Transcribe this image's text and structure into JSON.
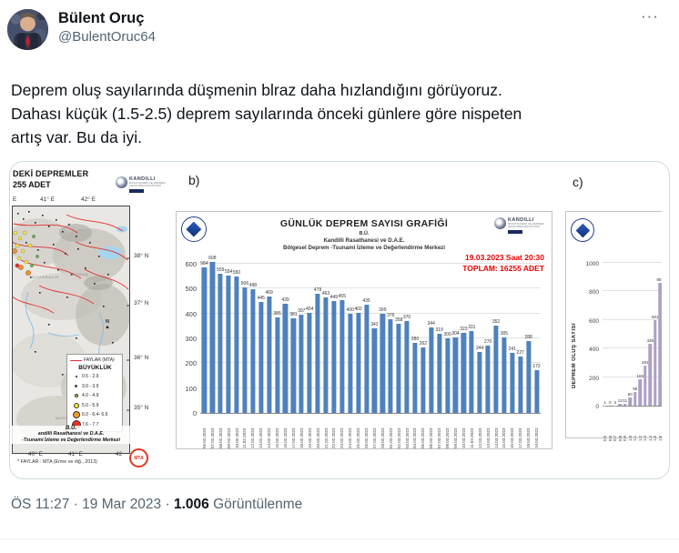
{
  "header": {
    "display_name": "Bülent Oruç",
    "handle": "@BulentOruc64",
    "more_label": "···"
  },
  "tweet": {
    "lines": [
      "Deprem oluş sayılarında düşmenin blraz daha hızlandığını görüyoruz.",
      "Dahası küçük (1.5-2.5) deprem sayılarında önceki günlere göre nispeten",
      "artış var. Bu da iyi."
    ]
  },
  "footer": {
    "time": "ÖS 11:27",
    "date": "19 Mar 2023",
    "separator": "·",
    "views": "1.006",
    "views_label": "Görüntülenme"
  },
  "panel_b": {
    "label": "b)"
  },
  "panel_c": {
    "label": "c)"
  },
  "logos": {
    "kandilli_name": "KANDILLI",
    "kandilli_sub": "RASATHANESİ VE DEPREM ARAŞTIRMA ENSTİTÜSÜ",
    "mta": "MTA"
  },
  "map_panel": {
    "title_line1": "DEKİ DEPREMLER",
    "title_line2": "255 ADET",
    "top_lon_labels": [
      "E",
      "41° E",
      "42° E"
    ],
    "lat_labels": [
      "38° N",
      "37° N",
      "36° N",
      "35° N"
    ],
    "bottom_lon_labels": [
      "40° E",
      "41° E",
      "42"
    ],
    "city_labels": [
      "DİYARBAKIR",
      "BATMAN",
      "MARDİN"
    ],
    "compass": "N",
    "legend": {
      "fault_label": "FAYLAR (MTA)",
      "size_title": "BÜYÜKLÜK",
      "entries": [
        {
          "label": "0.5 - 2.9",
          "color": "#222222",
          "size": 2
        },
        {
          "label": "3.0 - 3.9",
          "color": "#444444",
          "size": 3
        },
        {
          "label": "4.0 - 4.9",
          "color": "#cfd24a",
          "size": 4
        },
        {
          "label": "5.0 - 5.9",
          "color": "#ffe83a",
          "size": 6
        },
        {
          "label": "6.0 - 6.4- 6.6",
          "color": "#f59c2f",
          "size": 8
        },
        {
          "label": "7.6 - 7.7",
          "color": "#ee2e24",
          "size": 10
        }
      ]
    },
    "credit_bu": "B.Ü.",
    "credit_line1": "andilli Rasathanesi ve D.A.E.",
    "credit_line2": "-Tsunami İzleme ve Değerlendirme Merkezi",
    "fault_note": "* FAYLAR : MTA (Emre ve diğ., 2013)"
  },
  "chart_data": [
    {
      "id": "daily-earthquake-count",
      "type": "bar",
      "title": "GÜNLÜK  DEPREM SAYISI GRAFİĞİ",
      "subtitle1": "B.Ü.",
      "subtitle2": "Kandilli Rasathanesi ve D.A.E.",
      "subtitle3": "Bölgesel Deprem -Tsunami İzleme ve Değerlendirme Merkezi",
      "annotation_line1": "19.03.2023 Saat 20:30",
      "annotation_line2": "TOPLAM:  16255 ADET",
      "categories": [
        "06.02.2023",
        "07.02.2023",
        "08.02.2023",
        "09.02.2023",
        "10.02.2023",
        "11.02.2023",
        "12.02.2023",
        "13.02.2023",
        "14.02.2023",
        "15.02.2023",
        "16.02.2023",
        "17.02.2023",
        "18.02.2023",
        "19.02.2023",
        "20.02.2023",
        "21.02.2023",
        "22.02.2023",
        "23.02.2023",
        "24.02.2023",
        "25.02.2023",
        "26.02.2023",
        "27.02.2023",
        "28.02.2023",
        "01.03.2023",
        "02.03.2023",
        "03.03.2023",
        "04.03.2023",
        "05.03.2023",
        "06.03.2023",
        "07.03.2023",
        "08.03.2023",
        "09.03.2023",
        "10.03.2023",
        "11.03.2023",
        "12.03.2023",
        "13.03.2023",
        "14.03.2023",
        "15.03.2023",
        "16.03.2023",
        "17.03.2023",
        "18.03.2023",
        "19.03.2023"
      ],
      "values": [
        584,
        608,
        559,
        554,
        550,
        506,
        498,
        445,
        469,
        385,
        439,
        381,
        397,
        404,
        479,
        463,
        449,
        455,
        400,
        402,
        435,
        342,
        399,
        376,
        358,
        370,
        280,
        262,
        344,
        319,
        300,
        304,
        323,
        331,
        244,
        270,
        352,
        305,
        241,
        227,
        288,
        172
      ],
      "xlabel": "",
      "ylabel": "",
      "ylim": [
        0,
        650
      ],
      "yticks": [
        0,
        100,
        200,
        300,
        400,
        500,
        600
      ],
      "grid": true,
      "bar_color": "#4f81bd",
      "legend_position": "none"
    },
    {
      "id": "earthquake-count-by-magnitude",
      "type": "bar",
      "title": "",
      "xlabel": "",
      "ylabel": "DEPREM OLUŞ SAYISI",
      "categories": [
        "0.5",
        "0.6",
        "0.7",
        "0.8",
        "0.9",
        "1.0",
        "1.1",
        "1.2",
        "1.3",
        "1.4",
        "1.5",
        "1.6",
        "1.7"
      ],
      "values": [
        1,
        0,
        3,
        13,
        11,
        60,
        95,
        183,
        281,
        436,
        601,
        857,
        984
      ],
      "note": "rightmost bar partially cropped at image edge",
      "ylim": [
        0,
        1000
      ],
      "yticks": [
        0,
        200,
        400,
        600,
        800,
        1000
      ],
      "grid": true,
      "bar_color": "#ada0c6",
      "legend_position": "none"
    }
  ]
}
